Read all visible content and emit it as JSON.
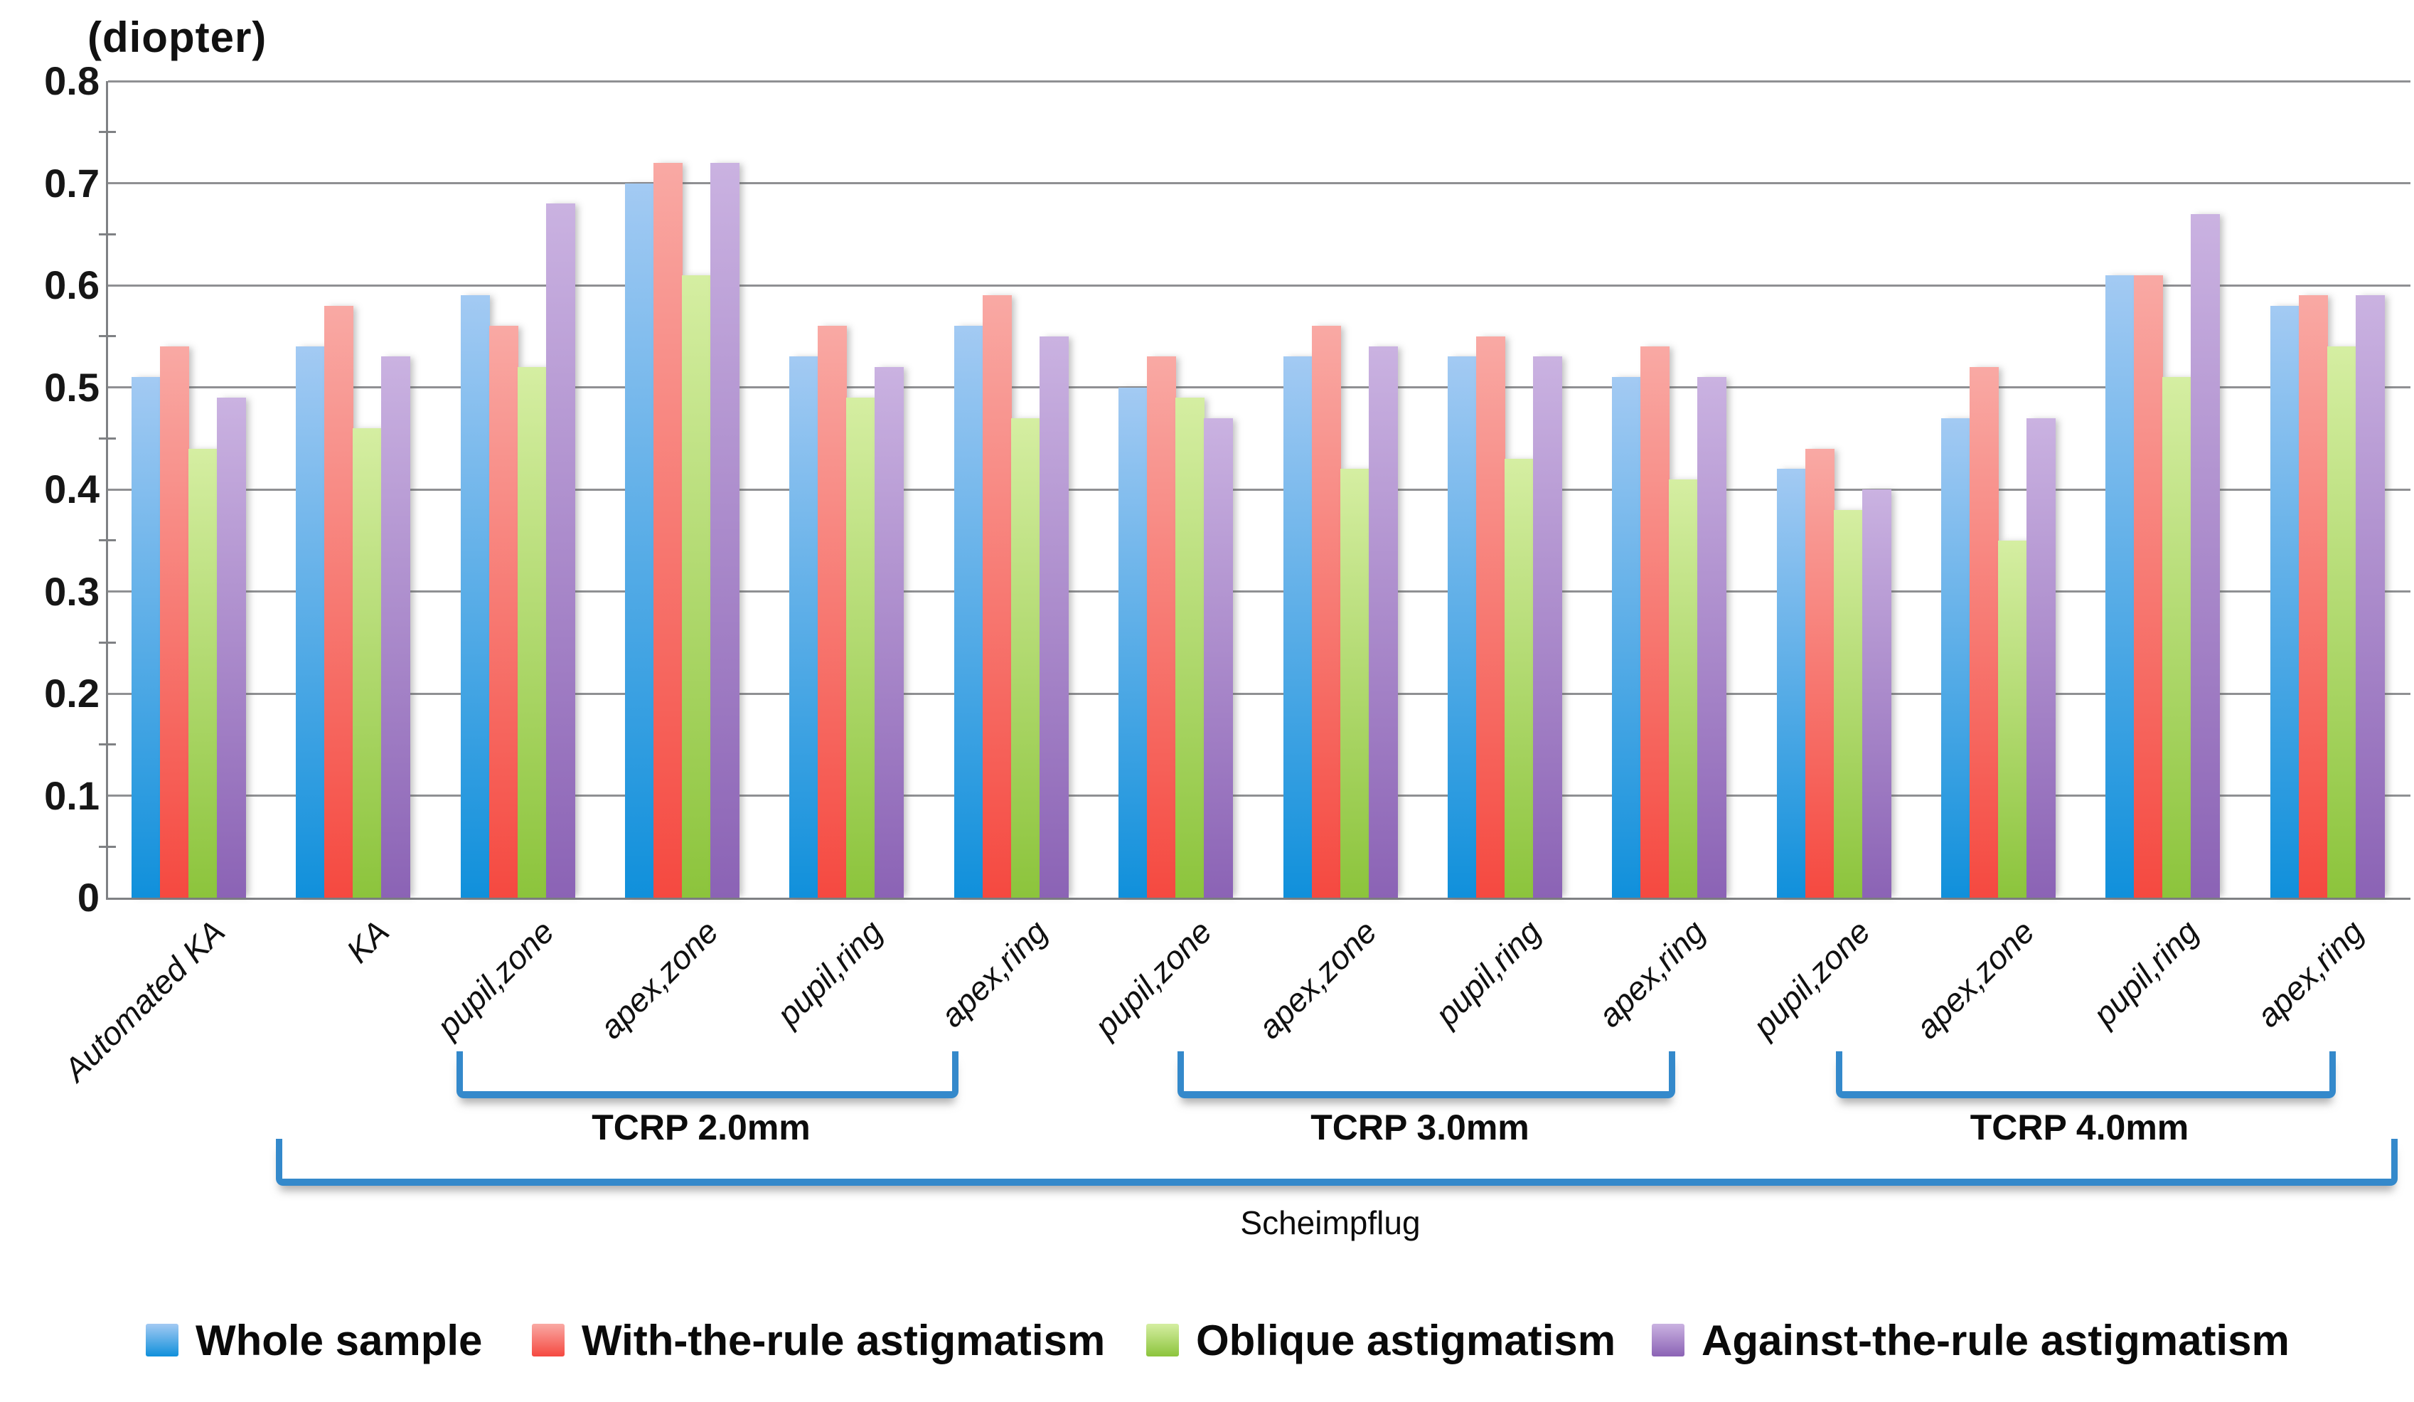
{
  "title": "(diopter)",
  "chart_data": {
    "type": "bar",
    "title": "(diopter)",
    "xlabel": "",
    "ylabel": "(diopter)",
    "ylim": [
      0,
      0.8
    ],
    "ytick_step": 0.1,
    "ytick_labels": [
      "0",
      "0.1",
      "0.2",
      "0.3",
      "0.4",
      "0.5",
      "0.6",
      "0.7",
      "0.8"
    ],
    "grid": "horizontal-major",
    "legend_position": "bottom",
    "categories": [
      "Automated KA",
      "KA",
      "pupil,zone",
      "apex,zone",
      "pupil,ring",
      "apex,ring",
      "pupil,zone",
      "apex,zone",
      "pupil,ring",
      "apex,ring",
      "pupil,zone",
      "apex,zone",
      "pupil,ring",
      "apex,ring"
    ],
    "series": [
      {
        "name": "Whole sample",
        "color_top": "#A3CAF3",
        "color_bottom": "#1090DB",
        "values": [
          0.51,
          0.54,
          0.59,
          0.7,
          0.53,
          0.56,
          0.5,
          0.53,
          0.53,
          0.51,
          0.42,
          0.47,
          0.61,
          0.58
        ]
      },
      {
        "name": "With-the-rule astigmatism",
        "color_top": "#F9A9A4",
        "color_bottom": "#F54940",
        "values": [
          0.54,
          0.58,
          0.56,
          0.72,
          0.56,
          0.59,
          0.53,
          0.56,
          0.55,
          0.54,
          0.44,
          0.52,
          0.61,
          0.59
        ]
      },
      {
        "name": "Oblique astigmatism",
        "color_top": "#D5EEA2",
        "color_bottom": "#8CC43C",
        "values": [
          0.44,
          0.46,
          0.52,
          0.61,
          0.49,
          0.47,
          0.49,
          0.42,
          0.43,
          0.41,
          0.38,
          0.35,
          0.51,
          0.54
        ]
      },
      {
        "name": "Against-the-rule astigmatism",
        "color_top": "#CAB2E1",
        "color_bottom": "#8B63B5",
        "values": [
          0.49,
          0.53,
          0.68,
          0.72,
          0.52,
          0.55,
          0.47,
          0.54,
          0.53,
          0.51,
          0.4,
          0.47,
          0.67,
          0.59
        ]
      }
    ],
    "group_brackets": [
      {
        "label": "TCRP 2.0mm",
        "from_category": 2,
        "to_category": 5,
        "level": 1
      },
      {
        "label": "TCRP 3.0mm",
        "from_category": 6,
        "to_category": 9,
        "level": 1
      },
      {
        "label": "TCRP 4.0mm",
        "from_category": 10,
        "to_category": 13,
        "level": 1
      },
      {
        "label": "Scheimpflug",
        "from_category": 1,
        "to_category": 13,
        "level": 2
      }
    ],
    "bracket_color": "#3489CB"
  }
}
